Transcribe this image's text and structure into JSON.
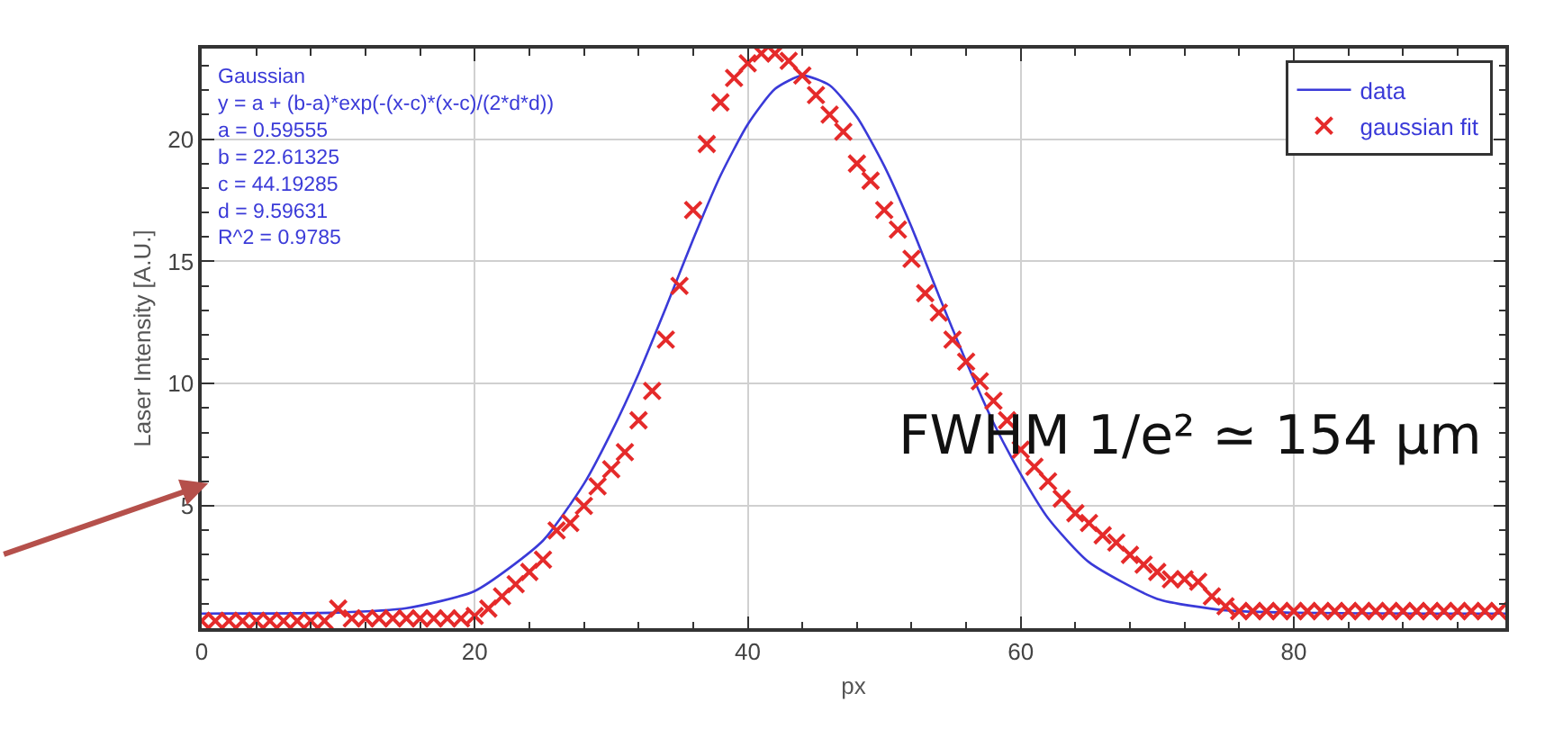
{
  "chart_data": {
    "type": "line",
    "xlabel": "px",
    "ylabel": "Laser Intensity [A.U.]",
    "xlim": [
      0,
      95.5
    ],
    "xticks": [
      0,
      20,
      40,
      60,
      80
    ],
    "ylim": [
      0,
      23.7
    ],
    "yticks": [
      5,
      10,
      15,
      20
    ],
    "grid": true,
    "legend": "top right",
    "annotations": [
      "Gaussian\ny = a + (b-a)*exp(-(x-c)*(x-c)/(2*d*d))\na = 0.59555\nb = 22.61325\nc = 44.19285\nd = 9.59631\nR^2 = 0.9785",
      "FWHM 1/e² ≃ 154 µm"
    ],
    "series": [
      {
        "name": "data",
        "marker": "none",
        "line_style": "solid",
        "color": "#3a3ad8",
        "x": [
          0,
          10,
          15,
          20,
          25,
          28,
          30,
          32,
          34,
          36,
          38,
          40,
          42,
          44,
          46,
          48,
          50,
          52,
          54,
          56,
          58,
          60,
          62,
          65,
          70,
          75,
          80,
          90,
          95.5
        ],
        "values": [
          0.6,
          0.64,
          0.82,
          1.52,
          3.58,
          5.9,
          8.0,
          10.4,
          13.1,
          15.9,
          18.5,
          20.6,
          22.05,
          22.6,
          22.2,
          20.9,
          18.9,
          16.4,
          13.6,
          10.9,
          8.4,
          6.3,
          4.5,
          2.7,
          1.2,
          0.73,
          0.63,
          0.6,
          0.6
        ]
      },
      {
        "name": "gaussian fit",
        "type": "scatter",
        "marker": "cross",
        "color": "#e52a2a",
        "x": [
          0,
          1,
          2,
          3,
          4,
          5,
          6,
          7,
          8,
          9,
          10,
          11,
          12,
          13,
          14,
          15,
          16,
          17,
          18,
          19,
          20,
          21,
          22,
          23,
          24,
          25,
          26,
          27,
          28,
          29,
          30,
          31,
          32,
          33,
          34,
          35,
          36,
          37,
          38,
          39,
          40,
          41,
          42,
          43,
          44,
          45,
          46,
          47,
          48,
          49,
          50,
          51,
          52,
          53,
          54,
          55,
          56,
          57,
          58,
          59,
          60,
          61,
          62,
          63,
          64,
          65,
          66,
          67,
          68,
          69,
          70,
          71,
          72,
          73,
          74,
          75,
          76,
          77,
          78,
          79,
          80,
          81,
          82,
          83,
          84,
          85,
          86,
          87,
          88,
          89,
          90,
          91,
          92,
          93,
          94,
          95
        ],
        "values": [
          0.3,
          0.3,
          0.3,
          0.3,
          0.3,
          0.3,
          0.3,
          0.3,
          0.3,
          0.3,
          0.8,
          0.4,
          0.4,
          0.4,
          0.4,
          0.4,
          0.4,
          0.4,
          0.4,
          0.4,
          0.5,
          0.8,
          1.3,
          1.8,
          2.3,
          2.8,
          4.0,
          4.3,
          5.0,
          5.8,
          6.5,
          7.2,
          8.5,
          9.7,
          11.8,
          14.0,
          17.1,
          19.8,
          21.5,
          22.5,
          23.1,
          23.5,
          23.5,
          23.2,
          22.6,
          21.8,
          21.0,
          20.3,
          19.0,
          18.3,
          17.1,
          16.3,
          15.1,
          13.7,
          12.9,
          11.8,
          10.9,
          10.1,
          9.3,
          8.5,
          7.3,
          6.6,
          6.0,
          5.3,
          4.7,
          4.3,
          3.8,
          3.5,
          3.0,
          2.6,
          2.3,
          2.0,
          2.0,
          1.9,
          1.3,
          0.9,
          0.7,
          0.7,
          0.7,
          0.7,
          0.7,
          0.7,
          0.7,
          0.7,
          0.7,
          0.7,
          0.7,
          0.7,
          0.7,
          0.7,
          0.7,
          0.7,
          0.7,
          0.7,
          0.7,
          0.7
        ]
      }
    ]
  }
}
